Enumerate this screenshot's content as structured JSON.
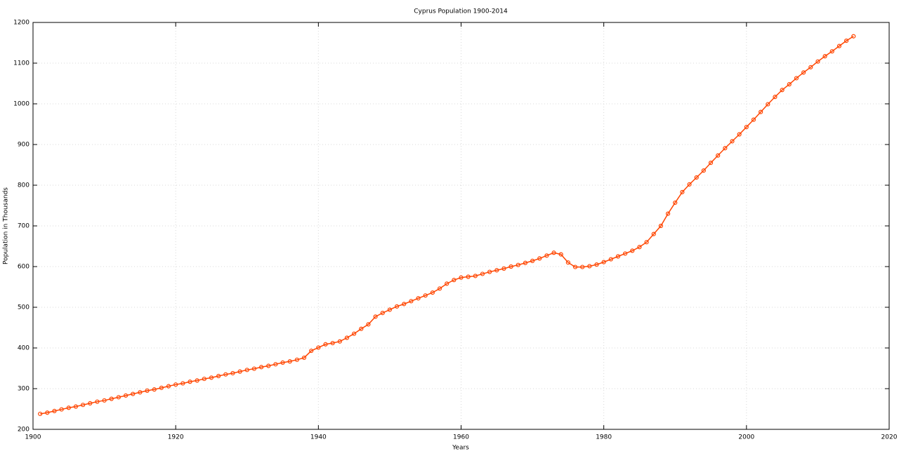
{
  "chart_data": {
    "type": "line",
    "title": "Cyprus Population 1900-2014",
    "xlabel": "Years",
    "ylabel": "Population in Thousands",
    "x": [
      1901,
      1902,
      1903,
      1904,
      1905,
      1906,
      1907,
      1908,
      1909,
      1910,
      1911,
      1912,
      1913,
      1914,
      1915,
      1916,
      1917,
      1918,
      1919,
      1920,
      1921,
      1922,
      1923,
      1924,
      1925,
      1926,
      1927,
      1928,
      1929,
      1930,
      1931,
      1932,
      1933,
      1934,
      1935,
      1936,
      1937,
      1938,
      1939,
      1940,
      1941,
      1942,
      1943,
      1944,
      1945,
      1946,
      1947,
      1948,
      1949,
      1950,
      1951,
      1952,
      1953,
      1954,
      1955,
      1956,
      1957,
      1958,
      1959,
      1960,
      1961,
      1962,
      1963,
      1964,
      1965,
      1966,
      1967,
      1968,
      1969,
      1970,
      1971,
      1972,
      1973,
      1974,
      1975,
      1976,
      1977,
      1978,
      1979,
      1980,
      1981,
      1982,
      1983,
      1984,
      1985,
      1986,
      1987,
      1988,
      1989,
      1990,
      1991,
      1992,
      1993,
      1994,
      1995,
      1996,
      1997,
      1998,
      1999,
      2000,
      2001,
      2002,
      2003,
      2004,
      2005,
      2006,
      2007,
      2008,
      2009,
      2010,
      2011,
      2012,
      2013,
      2014,
      2015
    ],
    "series": [
      {
        "color": "#ff4500",
        "values": [
          238,
          241,
          245,
          249,
          253,
          256,
          260,
          264,
          268,
          271,
          275,
          279,
          283,
          287,
          291,
          295,
          298,
          302,
          306,
          310,
          313,
          317,
          320,
          324,
          327,
          331,
          335,
          338,
          342,
          346,
          349,
          353,
          356,
          360,
          364,
          367,
          371,
          376,
          393,
          401,
          409,
          412,
          416,
          425,
          435,
          447,
          458,
          477,
          486,
          494,
          502,
          508,
          515,
          522,
          529,
          536,
          546,
          558,
          567,
          573,
          575,
          577,
          582,
          587,
          591,
          595,
          600,
          604,
          609,
          614,
          620,
          627,
          634,
          630,
          610,
          599,
          599,
          601,
          605,
          611,
          618,
          625,
          632,
          639,
          648,
          660,
          680,
          700,
          730,
          757,
          783,
          802,
          819,
          836,
          855,
          873,
          891,
          908,
          925,
          943,
          961,
          980,
          999,
          1017,
          1034,
          1048,
          1063,
          1077,
          1090,
          1104,
          1117,
          1129,
          1142,
          1155,
          1166
        ]
      }
    ],
    "xlim": [
      1900,
      2020
    ],
    "xticks": [
      1900,
      1920,
      1940,
      1960,
      1980,
      2000,
      2020
    ],
    "ylim": [
      200,
      1200
    ],
    "yticks": [
      200,
      300,
      400,
      500,
      600,
      700,
      800,
      900,
      1000,
      1100,
      1200
    ],
    "grid": true
  }
}
